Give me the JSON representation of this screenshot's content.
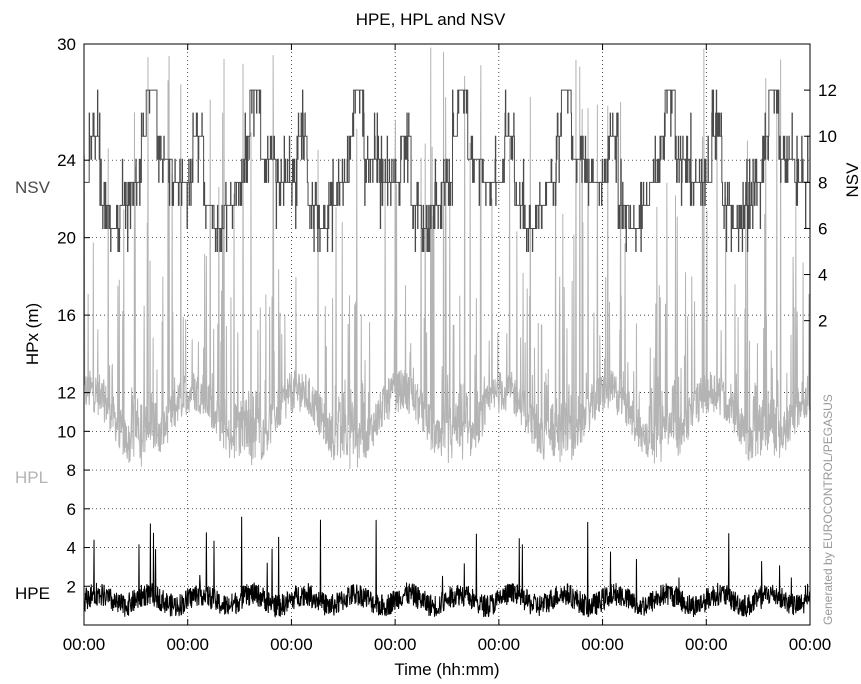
{
  "chart_data": {
    "type": "line",
    "title": "HPE, HPL and NSV",
    "xlabel": "Time (hh:mm)",
    "ylabel": "HPx  (m)",
    "y2label": "NSV",
    "watermark": "Generated by EUROCONTROL/PEGASUS",
    "xlim": [
      0,
      7
    ],
    "ylim": [
      0,
      30
    ],
    "y2lim": [
      -11.2,
      14
    ],
    "grid": true,
    "x_ticks": [
      0,
      1,
      2,
      3,
      4,
      5,
      6,
      7
    ],
    "x_tick_labels": [
      "00:00",
      "00:00",
      "00:00",
      "00:00",
      "00:00",
      "00:00",
      "00:00",
      "00:00"
    ],
    "y_ticks": [
      2,
      4,
      6,
      8,
      10,
      12,
      16,
      20,
      24,
      30
    ],
    "y_tick_labels": [
      "2",
      "4",
      "6",
      "8",
      "10",
      "12",
      "16",
      "20",
      "24",
      "30"
    ],
    "y2_ticks": [
      2,
      4,
      6,
      8,
      10,
      12
    ],
    "y2_tick_labels": [
      "2",
      "4",
      "6",
      "8",
      "10",
      "12"
    ],
    "series": [
      {
        "name": "NSV",
        "axis": "right",
        "color": "#4a4a4a",
        "summary": {
          "min": 5,
          "max": 12,
          "typical_low": 6,
          "typical_high": 10,
          "period": 1
        },
        "profile": [
          [
            0.0,
            8
          ],
          [
            0.05,
            10
          ],
          [
            0.15,
            7
          ],
          [
            0.25,
            6
          ],
          [
            0.35,
            7
          ],
          [
            0.45,
            8
          ],
          [
            0.55,
            10
          ],
          [
            0.6,
            12
          ],
          [
            0.7,
            9
          ],
          [
            0.85,
            8
          ],
          [
            1.0,
            8
          ]
        ]
      },
      {
        "name": "HPL",
        "axis": "left",
        "color": "#b4b4b4",
        "summary": {
          "baseline_min": 7,
          "baseline_typical": 10,
          "spikes_to": 30,
          "period": 1
        }
      },
      {
        "name": "HPE",
        "axis": "left",
        "color": "#000000",
        "summary": {
          "baseline_min": 0.2,
          "baseline_typical": 1,
          "max": 6
        }
      }
    ],
    "inline_labels": {
      "nsv": "NSV",
      "hpl": "HPL",
      "hpe": "HPE"
    }
  }
}
